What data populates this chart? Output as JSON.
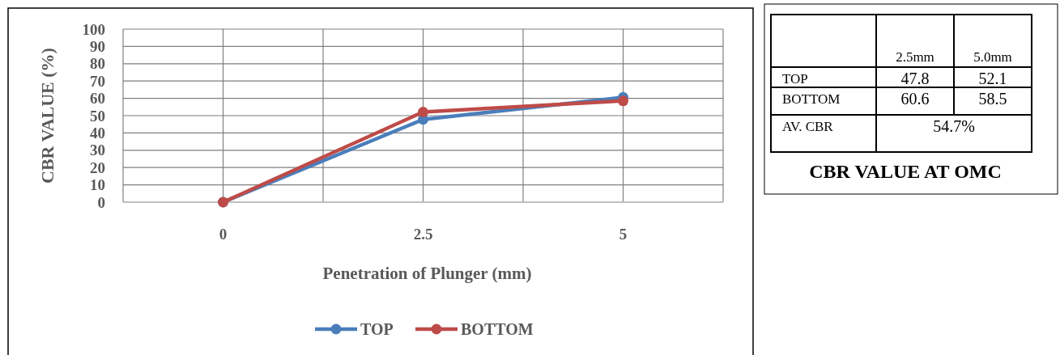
{
  "chart_data": [
    {
      "type": "line",
      "xlabel": "Penetration of Plunger (mm)",
      "ylabel": "CBR VALUE (%)",
      "categories": [
        "0",
        "2.5",
        "5"
      ],
      "ylim": [
        0,
        100
      ],
      "yticks": [
        0,
        10,
        20,
        30,
        40,
        50,
        60,
        70,
        80,
        90,
        100
      ],
      "grid": true,
      "legend": "bottom",
      "marker": "circle",
      "line_style": "solid",
      "series": [
        {
          "name": "TOP",
          "color": "#4a7ebb",
          "values": [
            0,
            47.8,
            60.6
          ]
        },
        {
          "name": "BOTTOM",
          "color": "#be4b48",
          "values": [
            0,
            52.1,
            58.5
          ]
        }
      ]
    },
    {
      "type": "other",
      "title": "CBR VALUE AT OMC",
      "categories": [
        "2.5mm",
        "5.0mm"
      ],
      "y_categories": [
        "TOP",
        "BOTTOM",
        "AV. CBR"
      ],
      "annotations": [
        "47.8",
        "52.1",
        "60.6",
        "58.5",
        "54.7%"
      ]
    }
  ]
}
